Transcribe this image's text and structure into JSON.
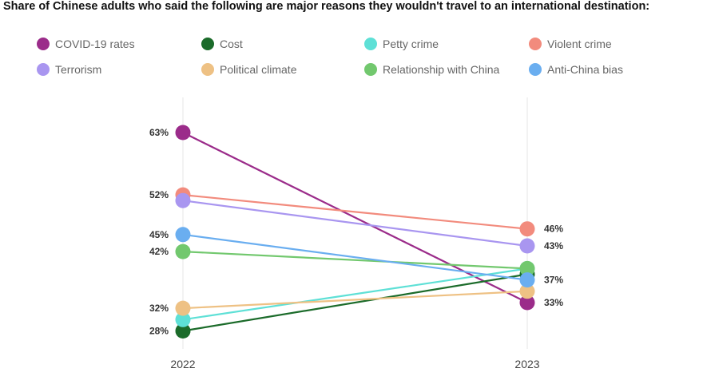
{
  "title": "Share of Chinese adults who said the following are major reasons they wouldn't travel to an international destination:",
  "chart_data": {
    "type": "line",
    "subtype": "slope",
    "categories": [
      "2022",
      "2023"
    ],
    "y_unit": "%",
    "ylim": [
      20,
      70
    ],
    "series": [
      {
        "name": "COVID-19 rates",
        "color": "#9b2c8a",
        "values": [
          63,
          33
        ]
      },
      {
        "name": "Cost",
        "color": "#1b6b2a",
        "values": [
          28,
          38
        ]
      },
      {
        "name": "Petty crime",
        "color": "#5ee0d6",
        "values": [
          30,
          39
        ]
      },
      {
        "name": "Violent crime",
        "color": "#f28b7d",
        "values": [
          52,
          46
        ]
      },
      {
        "name": "Terrorism",
        "color": "#a996f0",
        "values": [
          51,
          43
        ]
      },
      {
        "name": "Political climate",
        "color": "#eec184",
        "values": [
          32,
          35
        ]
      },
      {
        "name": "Relationship with China",
        "color": "#72c86e",
        "values": [
          42,
          39
        ]
      },
      {
        "name": "Anti-China bias",
        "color": "#6aaef0",
        "values": [
          45,
          37
        ]
      }
    ],
    "value_labels": {
      "2022": [
        "63%",
        "52%",
        "45%",
        "42%",
        "32%",
        "28%"
      ],
      "2023": [
        "46%",
        "43%",
        "37%",
        "33%"
      ]
    }
  }
}
